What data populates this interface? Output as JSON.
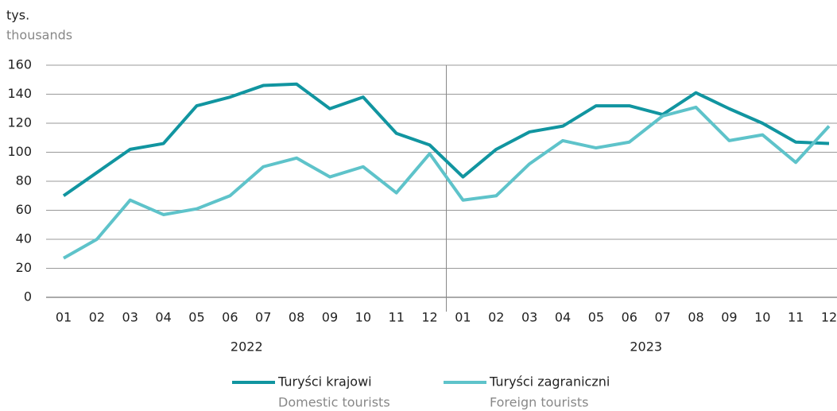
{
  "chart_data": {
    "type": "line",
    "y_label": "tys.",
    "y_label_en": "thousands",
    "categories": [
      "01",
      "02",
      "03",
      "04",
      "05",
      "06",
      "07",
      "08",
      "09",
      "10",
      "11",
      "12",
      "01",
      "02",
      "03",
      "04",
      "05",
      "06",
      "07",
      "08",
      "09",
      "10",
      "11",
      "12"
    ],
    "years": [
      "2022",
      "2023"
    ],
    "series": [
      {
        "name": "Turyści krajowi",
        "name_en": "Domestic tourists",
        "color": "#1195a0",
        "values": [
          70,
          86,
          102,
          106,
          132,
          138,
          146,
          147,
          130,
          138,
          113,
          105,
          83,
          102,
          114,
          118,
          132,
          132,
          126,
          141,
          130,
          120,
          107,
          106
        ]
      },
      {
        "name": "Turyści zagraniczni",
        "name_en": "Foreign tourists",
        "color": "#5ec3ca",
        "values": [
          27,
          40,
          67,
          57,
          61,
          70,
          90,
          96,
          83,
          90,
          72,
          99,
          67,
          70,
          92,
          108,
          103,
          107,
          125,
          131,
          108,
          112,
          93,
          118
        ]
      }
    ],
    "ylim": [
      0,
      160
    ],
    "yticks": [
      0,
      20,
      40,
      60,
      80,
      100,
      120,
      140,
      160
    ],
    "grid": true
  }
}
